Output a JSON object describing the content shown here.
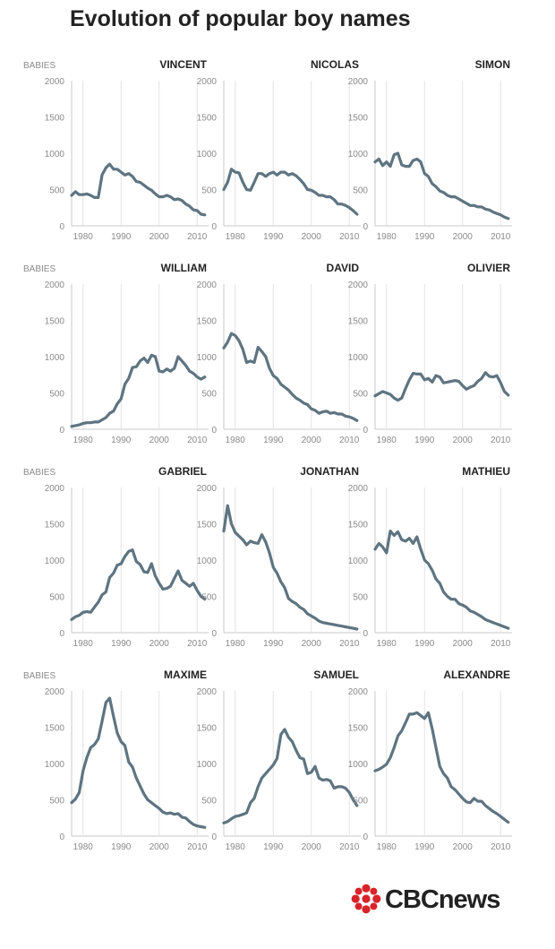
{
  "title": "Evolution of popular boy names",
  "brand": {
    "prefix": "CBC",
    "suffix": "news",
    "color": "#d8232a"
  },
  "line_color": "#5e7481",
  "chart_data": [
    {
      "type": "line",
      "title": "VINCENT",
      "ylabel": "BABIES",
      "xlim": [
        1977,
        2013
      ],
      "ylim": [
        0,
        2000
      ],
      "xticks": [
        1980,
        1990,
        2000,
        2010
      ],
      "yticks": [
        0,
        500,
        1000,
        1500,
        2000
      ],
      "x": [
        1977,
        1978,
        1979,
        1980,
        1981,
        1982,
        1983,
        1984,
        1985,
        1986,
        1987,
        1988,
        1989,
        1990,
        1991,
        1992,
        1993,
        1994,
        1995,
        1996,
        1997,
        1998,
        1999,
        2000,
        2001,
        2002,
        2003,
        2004,
        2005,
        2006,
        2007,
        2008,
        2009,
        2010,
        2011,
        2012
      ],
      "values": [
        420,
        470,
        430,
        430,
        440,
        420,
        390,
        390,
        700,
        800,
        850,
        780,
        780,
        740,
        700,
        720,
        680,
        610,
        600,
        560,
        520,
        490,
        440,
        400,
        400,
        420,
        400,
        360,
        370,
        350,
        300,
        270,
        220,
        210,
        160,
        150
      ]
    },
    {
      "type": "line",
      "title": "NICOLAS",
      "ylabel": "",
      "xlim": [
        1977,
        2013
      ],
      "ylim": [
        0,
        2000
      ],
      "xticks": [
        1980,
        1990,
        2000,
        2010
      ],
      "yticks": [
        0,
        500,
        1000,
        1500,
        2000
      ],
      "x": [
        1977,
        1978,
        1979,
        1980,
        1981,
        1982,
        1983,
        1984,
        1985,
        1986,
        1987,
        1988,
        1989,
        1990,
        1991,
        1992,
        1993,
        1994,
        1995,
        1996,
        1997,
        1998,
        1999,
        2000,
        2001,
        2002,
        2003,
        2004,
        2005,
        2006,
        2007,
        2008,
        2009,
        2010,
        2011,
        2012
      ],
      "values": [
        500,
        600,
        780,
        740,
        730,
        600,
        500,
        490,
        600,
        720,
        720,
        680,
        720,
        740,
        700,
        740,
        740,
        700,
        720,
        690,
        640,
        580,
        500,
        490,
        460,
        420,
        420,
        400,
        400,
        360,
        300,
        300,
        280,
        250,
        210,
        160
      ]
    },
    {
      "type": "line",
      "title": "SIMON",
      "ylabel": "",
      "xlim": [
        1977,
        2013
      ],
      "ylim": [
        0,
        2000
      ],
      "xticks": [
        1980,
        1990,
        2000,
        2010
      ],
      "yticks": [
        0,
        500,
        1000,
        1500,
        2000
      ],
      "x": [
        1977,
        1978,
        1979,
        1980,
        1981,
        1982,
        1983,
        1984,
        1985,
        1986,
        1987,
        1988,
        1989,
        1990,
        1991,
        1992,
        1993,
        1994,
        1995,
        1996,
        1997,
        1998,
        1999,
        2000,
        2001,
        2002,
        2003,
        2004,
        2005,
        2006,
        2007,
        2008,
        2009,
        2010,
        2011,
        2012
      ],
      "values": [
        880,
        920,
        830,
        880,
        820,
        980,
        1000,
        840,
        820,
        820,
        900,
        920,
        880,
        720,
        680,
        580,
        540,
        480,
        460,
        420,
        400,
        400,
        370,
        340,
        310,
        280,
        280,
        260,
        260,
        230,
        220,
        190,
        170,
        150,
        120,
        100
      ]
    },
    {
      "type": "line",
      "title": "WILLIAM",
      "ylabel": "BABIES",
      "xlim": [
        1977,
        2013
      ],
      "ylim": [
        0,
        2000
      ],
      "xticks": [
        1980,
        1990,
        2000,
        2010
      ],
      "yticks": [
        0,
        500,
        1000,
        1500,
        2000
      ],
      "x": [
        1977,
        1978,
        1979,
        1980,
        1981,
        1982,
        1983,
        1984,
        1985,
        1986,
        1987,
        1988,
        1989,
        1990,
        1991,
        1992,
        1993,
        1994,
        1995,
        1996,
        1997,
        1998,
        1999,
        2000,
        2001,
        2002,
        2003,
        2004,
        2005,
        2006,
        2007,
        2008,
        2009,
        2010,
        2011,
        2012
      ],
      "values": [
        40,
        50,
        60,
        80,
        90,
        90,
        100,
        100,
        130,
        160,
        220,
        250,
        350,
        420,
        620,
        700,
        850,
        860,
        940,
        980,
        920,
        1020,
        1000,
        800,
        790,
        830,
        800,
        840,
        1000,
        940,
        880,
        800,
        770,
        720,
        690,
        720
      ]
    },
    {
      "type": "line",
      "title": "DAVID",
      "ylabel": "",
      "xlim": [
        1977,
        2013
      ],
      "ylim": [
        0,
        2000
      ],
      "xticks": [
        1980,
        1990,
        2000,
        2010
      ],
      "yticks": [
        0,
        500,
        1000,
        1500,
        2000
      ],
      "x": [
        1977,
        1978,
        1979,
        1980,
        1981,
        1982,
        1983,
        1984,
        1985,
        1986,
        1987,
        1988,
        1989,
        1990,
        1991,
        1992,
        1993,
        1994,
        1995,
        1996,
        1997,
        1998,
        1999,
        2000,
        2001,
        2002,
        2003,
        2004,
        2005,
        2006,
        2007,
        2008,
        2009,
        2010,
        2011,
        2012
      ],
      "values": [
        1120,
        1200,
        1320,
        1290,
        1220,
        1100,
        920,
        940,
        920,
        1130,
        1070,
        1000,
        840,
        740,
        700,
        620,
        580,
        540,
        480,
        430,
        400,
        360,
        340,
        280,
        260,
        220,
        240,
        250,
        220,
        230,
        210,
        210,
        180,
        170,
        150,
        120
      ]
    },
    {
      "type": "line",
      "title": "OLIVIER",
      "ylabel": "",
      "xlim": [
        1977,
        2013
      ],
      "ylim": [
        0,
        2000
      ],
      "xticks": [
        1980,
        1990,
        2000,
        2010
      ],
      "yticks": [
        0,
        500,
        1000,
        1500,
        2000
      ],
      "x": [
        1977,
        1978,
        1979,
        1980,
        1981,
        1982,
        1983,
        1984,
        1985,
        1986,
        1987,
        1988,
        1989,
        1990,
        1991,
        1992,
        1993,
        1994,
        1995,
        1996,
        1997,
        1998,
        1999,
        2000,
        2001,
        2002,
        2003,
        2004,
        2005,
        2006,
        2007,
        2008,
        2009,
        2010,
        2011,
        2012
      ],
      "values": [
        460,
        490,
        520,
        500,
        480,
        430,
        400,
        430,
        560,
        680,
        770,
        760,
        760,
        680,
        700,
        650,
        740,
        720,
        640,
        650,
        660,
        670,
        660,
        600,
        550,
        580,
        600,
        660,
        700,
        780,
        730,
        720,
        740,
        640,
        520,
        470
      ]
    },
    {
      "type": "line",
      "title": "GABRIEL",
      "ylabel": "BABIES",
      "xlim": [
        1977,
        2013
      ],
      "ylim": [
        0,
        2000
      ],
      "xticks": [
        1980,
        1990,
        2000,
        2010
      ],
      "yticks": [
        0,
        500,
        1000,
        1500,
        2000
      ],
      "x": [
        1977,
        1978,
        1979,
        1980,
        1981,
        1982,
        1983,
        1984,
        1985,
        1986,
        1987,
        1988,
        1989,
        1990,
        1991,
        1992,
        1993,
        1994,
        1995,
        1996,
        1997,
        1998,
        1999,
        2000,
        2001,
        2002,
        2003,
        2004,
        2005,
        2006,
        2007,
        2008,
        2009,
        2010,
        2011,
        2012
      ],
      "values": [
        180,
        220,
        240,
        280,
        290,
        280,
        350,
        420,
        520,
        560,
        760,
        820,
        930,
        950,
        1050,
        1120,
        1140,
        980,
        940,
        840,
        830,
        950,
        780,
        680,
        600,
        610,
        640,
        750,
        850,
        720,
        680,
        640,
        680,
        580,
        500,
        460
      ]
    },
    {
      "type": "line",
      "title": "JONATHAN",
      "ylabel": "",
      "xlim": [
        1977,
        2013
      ],
      "ylim": [
        0,
        2000
      ],
      "xticks": [
        1980,
        1990,
        2000,
        2010
      ],
      "yticks": [
        0,
        500,
        1000,
        1500,
        2000
      ],
      "x": [
        1977,
        1978,
        1979,
        1980,
        1981,
        1982,
        1983,
        1984,
        1985,
        1986,
        1987,
        1988,
        1989,
        1990,
        1991,
        1992,
        1993,
        1994,
        1995,
        1996,
        1997,
        1998,
        1999,
        2000,
        2001,
        2002,
        2003,
        2004,
        2005,
        2006,
        2007,
        2008,
        2009,
        2010,
        2011,
        2012
      ],
      "values": [
        1400,
        1750,
        1500,
        1380,
        1330,
        1280,
        1210,
        1260,
        1240,
        1230,
        1350,
        1250,
        1100,
        900,
        820,
        700,
        620,
        470,
        430,
        400,
        350,
        320,
        260,
        230,
        200,
        160,
        140,
        130,
        120,
        110,
        100,
        90,
        80,
        70,
        60,
        50
      ]
    },
    {
      "type": "line",
      "title": "MATHIEU",
      "ylabel": "",
      "xlim": [
        1977,
        2013
      ],
      "ylim": [
        0,
        2000
      ],
      "xticks": [
        1980,
        1990,
        2000,
        2010
      ],
      "yticks": [
        0,
        500,
        1000,
        1500,
        2000
      ],
      "x": [
        1977,
        1978,
        1979,
        1980,
        1981,
        1982,
        1983,
        1984,
        1985,
        1986,
        1987,
        1988,
        1989,
        1990,
        1991,
        1992,
        1993,
        1994,
        1995,
        1996,
        1997,
        1998,
        1999,
        2000,
        2001,
        2002,
        2003,
        2004,
        2005,
        2006,
        2007,
        2008,
        2009,
        2010,
        2011,
        2012
      ],
      "values": [
        1150,
        1230,
        1180,
        1100,
        1400,
        1340,
        1390,
        1280,
        1260,
        1300,
        1230,
        1320,
        1150,
        1000,
        950,
        860,
        740,
        680,
        560,
        500,
        460,
        460,
        400,
        380,
        350,
        300,
        280,
        250,
        220,
        180,
        160,
        140,
        120,
        100,
        80,
        60
      ]
    },
    {
      "type": "line",
      "title": "MAXIME",
      "ylabel": "BABIES",
      "xlim": [
        1977,
        2013
      ],
      "ylim": [
        0,
        2000
      ],
      "xticks": [
        1980,
        1990,
        2000,
        2010
      ],
      "yticks": [
        0,
        500,
        1000,
        1500,
        2000
      ],
      "x": [
        1977,
        1978,
        1979,
        1980,
        1981,
        1982,
        1983,
        1984,
        1985,
        1986,
        1987,
        1988,
        1989,
        1990,
        1991,
        1992,
        1993,
        1994,
        1995,
        1996,
        1997,
        1998,
        1999,
        2000,
        2001,
        2002,
        2003,
        2004,
        2005,
        2006,
        2007,
        2008,
        2009,
        2010,
        2011,
        2012
      ],
      "values": [
        460,
        510,
        600,
        900,
        1080,
        1220,
        1260,
        1340,
        1580,
        1840,
        1900,
        1650,
        1420,
        1300,
        1250,
        1020,
        950,
        800,
        690,
        580,
        500,
        460,
        420,
        380,
        330,
        310,
        320,
        300,
        310,
        260,
        250,
        200,
        160,
        140,
        130,
        120
      ]
    },
    {
      "type": "line",
      "title": "SAMUEL",
      "ylabel": "",
      "xlim": [
        1977,
        2013
      ],
      "ylim": [
        0,
        2000
      ],
      "xticks": [
        1980,
        1990,
        2000,
        2010
      ],
      "yticks": [
        0,
        500,
        1000,
        1500,
        2000
      ],
      "x": [
        1977,
        1978,
        1979,
        1980,
        1981,
        1982,
        1983,
        1984,
        1985,
        1986,
        1987,
        1988,
        1989,
        1990,
        1991,
        1992,
        1993,
        1994,
        1995,
        1996,
        1997,
        1998,
        1999,
        2000,
        2001,
        2002,
        2003,
        2004,
        2005,
        2006,
        2007,
        2008,
        2009,
        2010,
        2011,
        2012
      ],
      "values": [
        180,
        200,
        240,
        270,
        280,
        300,
        320,
        460,
        520,
        680,
        800,
        860,
        920,
        980,
        1070,
        1400,
        1470,
        1360,
        1300,
        1180,
        1080,
        1060,
        860,
        880,
        960,
        800,
        770,
        780,
        760,
        660,
        680,
        680,
        660,
        600,
        500,
        420
      ]
    },
    {
      "type": "line",
      "title": "ALEXANDRE",
      "ylabel": "",
      "xlim": [
        1977,
        2013
      ],
      "ylim": [
        0,
        2000
      ],
      "xticks": [
        1980,
        1990,
        2000,
        2010
      ],
      "yticks": [
        0,
        500,
        1000,
        1500,
        2000
      ],
      "x": [
        1977,
        1978,
        1979,
        1980,
        1981,
        1982,
        1983,
        1984,
        1985,
        1986,
        1987,
        1988,
        1989,
        1990,
        1991,
        1992,
        1993,
        1994,
        1995,
        1996,
        1997,
        1998,
        1999,
        2000,
        2001,
        2002,
        2003,
        2004,
        2005,
        2006,
        2007,
        2008,
        2009,
        2010,
        2011,
        2012
      ],
      "values": [
        900,
        920,
        950,
        990,
        1080,
        1220,
        1380,
        1450,
        1560,
        1680,
        1680,
        1700,
        1660,
        1620,
        1700,
        1480,
        1220,
        960,
        860,
        800,
        680,
        640,
        580,
        520,
        470,
        460,
        520,
        480,
        480,
        420,
        380,
        340,
        310,
        270,
        230,
        190
      ]
    }
  ]
}
